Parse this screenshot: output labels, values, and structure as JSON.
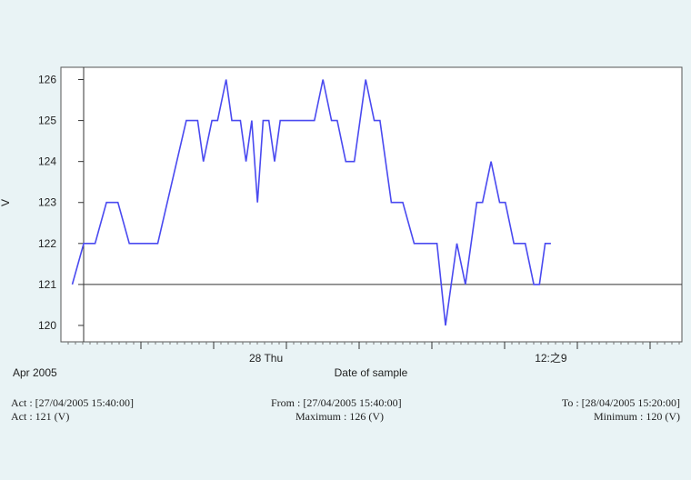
{
  "chart_data": {
    "type": "line",
    "ylabel": "V",
    "xlabel": "Date of sample",
    "ylim": [
      119.6,
      126.3
    ],
    "y_ticks": [
      120,
      121,
      122,
      123,
      124,
      125,
      126
    ],
    "x_tick_labels": [
      {
        "label": "28 Thu",
        "x": 28.0
      },
      {
        "label": "12:之9",
        "x": 28.5
      }
    ],
    "x_range_start_label": "Apr 2005",
    "xlim": [
      27.64,
      28.73
    ],
    "reference_line": 121,
    "grid": false,
    "series": [
      {
        "color": "#4a4af0",
        "points": [
          [
            27.66,
            121
          ],
          [
            27.68,
            122
          ],
          [
            27.7,
            122
          ],
          [
            27.72,
            123
          ],
          [
            27.74,
            123
          ],
          [
            27.76,
            122
          ],
          [
            27.81,
            122
          ],
          [
            27.86,
            125
          ],
          [
            27.88,
            125
          ],
          [
            27.89,
            124
          ],
          [
            27.905,
            125
          ],
          [
            27.915,
            125
          ],
          [
            27.93,
            126
          ],
          [
            27.94,
            125
          ],
          [
            27.955,
            125
          ],
          [
            27.965,
            124
          ],
          [
            27.975,
            125
          ],
          [
            27.985,
            123
          ],
          [
            27.995,
            125
          ],
          [
            28.005,
            125
          ],
          [
            28.015,
            124
          ],
          [
            28.025,
            125
          ],
          [
            28.085,
            125
          ],
          [
            28.1,
            126
          ],
          [
            28.115,
            125
          ],
          [
            28.125,
            125
          ],
          [
            28.14,
            124
          ],
          [
            28.155,
            124
          ],
          [
            28.175,
            126
          ],
          [
            28.19,
            125
          ],
          [
            28.2,
            125
          ],
          [
            28.22,
            123
          ],
          [
            28.24,
            123
          ],
          [
            28.26,
            122
          ],
          [
            28.3,
            122
          ],
          [
            28.315,
            120
          ],
          [
            28.335,
            122
          ],
          [
            28.35,
            121
          ],
          [
            28.37,
            123
          ],
          [
            28.38,
            123
          ],
          [
            28.395,
            124
          ],
          [
            28.41,
            123
          ],
          [
            28.42,
            123
          ],
          [
            28.435,
            122
          ],
          [
            28.455,
            122
          ],
          [
            28.47,
            121
          ],
          [
            28.48,
            121
          ],
          [
            28.49,
            122
          ],
          [
            28.5,
            122
          ]
        ]
      }
    ]
  },
  "footer": {
    "act_time": "Act : [27/04/2005 15:40:00]",
    "act_value": "Act : 121 (V)",
    "from": "From : [27/04/2005 15:40:00]",
    "maximum": "Maximum : 126 (V)",
    "to": "To : [28/04/2005 15:20:00]",
    "minimum": "Minimum : 120 (V)"
  }
}
